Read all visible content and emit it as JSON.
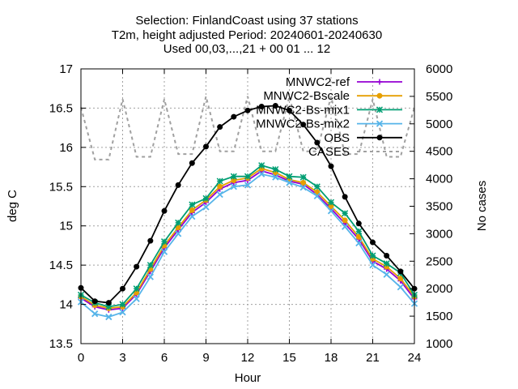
{
  "chart_data": {
    "type": "line",
    "title_lines": [
      "Selection: FinlandCoast using     37 stations",
      "T2m, height adjusted   Period: 20240601-20240630",
      "Used 00,03,...,21 + 00 01 ... 12"
    ],
    "xlabel": "Hour",
    "ylabel": "deg C",
    "y2label": "No cases",
    "xlim": [
      0,
      24
    ],
    "ylim": [
      13.5,
      17
    ],
    "y2lim": [
      1000,
      6000
    ],
    "xticks": [
      "0",
      "3",
      "6",
      "9",
      "12",
      "15",
      "18",
      "21",
      "24"
    ],
    "yticks": [
      "13.5",
      "14",
      "14.5",
      "15",
      "15.5",
      "16",
      "16.5",
      "17"
    ],
    "y2ticks": [
      "1000",
      "1500",
      "2000",
      "2500",
      "3000",
      "3500",
      "4000",
      "4500",
      "5000",
      "5500",
      "6000"
    ],
    "grid": true,
    "legend_position": "top-right",
    "x": [
      0,
      1,
      2,
      3,
      4,
      5,
      6,
      7,
      8,
      9,
      10,
      11,
      12,
      13,
      14,
      15,
      16,
      17,
      18,
      19,
      20,
      21,
      22,
      23,
      24
    ],
    "series": [
      {
        "name": "MNWC2-ref",
        "color": "#9400d3",
        "marker": "plus",
        "axis": "y",
        "values": [
          14.08,
          13.97,
          13.93,
          13.95,
          14.13,
          14.42,
          14.72,
          14.95,
          15.17,
          15.3,
          15.47,
          15.55,
          15.58,
          15.7,
          15.65,
          15.57,
          15.53,
          15.4,
          15.22,
          15.03,
          14.83,
          14.55,
          14.45,
          14.3,
          14.07
        ]
      },
      {
        "name": "MNWC2-Bscale",
        "color": "#e69f00",
        "marker": "circle",
        "axis": "y",
        "values": [
          14.1,
          13.99,
          13.95,
          13.97,
          14.15,
          14.45,
          14.75,
          14.98,
          15.2,
          15.33,
          15.5,
          15.58,
          15.61,
          15.73,
          15.68,
          15.59,
          15.55,
          15.43,
          15.25,
          15.07,
          14.86,
          14.58,
          14.48,
          14.33,
          14.1
        ]
      },
      {
        "name": "MNWC2-Bs-mix1",
        "color": "#009e73",
        "marker": "star",
        "axis": "y",
        "values": [
          14.12,
          14.02,
          13.97,
          14.0,
          14.2,
          14.5,
          14.8,
          15.04,
          15.27,
          15.35,
          15.57,
          15.63,
          15.63,
          15.77,
          15.72,
          15.63,
          15.62,
          15.5,
          15.3,
          15.16,
          14.93,
          14.62,
          14.52,
          14.4,
          14.12
        ]
      },
      {
        "name": "MNWC2-Bs-mix2",
        "color": "#56b4e9",
        "marker": "cross",
        "axis": "y",
        "values": [
          14.03,
          13.88,
          13.84,
          13.9,
          14.07,
          14.35,
          14.67,
          14.9,
          15.12,
          15.24,
          15.4,
          15.5,
          15.52,
          15.66,
          15.62,
          15.55,
          15.49,
          15.38,
          15.19,
          14.99,
          14.78,
          14.5,
          14.38,
          14.22,
          14.01
        ]
      },
      {
        "name": "OBS",
        "color": "#000000",
        "marker": "filled-circle",
        "axis": "y",
        "values": [
          14.21,
          14.04,
          14.02,
          14.2,
          14.48,
          14.81,
          15.19,
          15.52,
          15.8,
          16.01,
          16.26,
          16.39,
          16.47,
          16.52,
          16.53,
          16.47,
          16.29,
          16.06,
          15.76,
          15.37,
          15.03,
          14.79,
          14.62,
          14.42,
          14.2
        ]
      },
      {
        "name": "CASES",
        "color": "#a0a0a0",
        "marker": "none",
        "dash": true,
        "axis": "y2",
        "values": [
          5300,
          4350,
          4350,
          5450,
          4400,
          4400,
          5450,
          4450,
          4450,
          5500,
          4500,
          4500,
          5500,
          4500,
          4500,
          5500,
          4500,
          4500,
          5500,
          4450,
          4450,
          5450,
          4400,
          4400,
          5300
        ]
      }
    ]
  }
}
